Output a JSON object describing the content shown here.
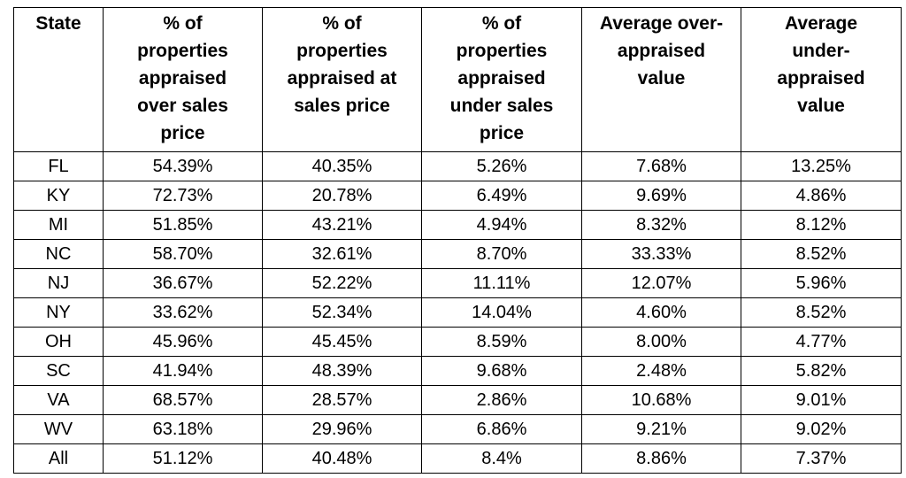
{
  "table": {
    "header": [
      "State",
      "% of properties appraised over sales price",
      "% of properties appraised at sales price",
      "% of properties appraised under sales price",
      "Average over-appraised value",
      "Average under-appraised value"
    ],
    "rows": [
      [
        "FL",
        "54.39%",
        "40.35%",
        "5.26%",
        "7.68%",
        "13.25%"
      ],
      [
        "KY",
        "72.73%",
        "20.78%",
        "6.49%",
        "9.69%",
        "4.86%"
      ],
      [
        "MI",
        "51.85%",
        "43.21%",
        "4.94%",
        "8.32%",
        "8.12%"
      ],
      [
        "NC",
        "58.70%",
        "32.61%",
        "8.70%",
        "33.33%",
        "8.52%"
      ],
      [
        "NJ",
        "36.67%",
        "52.22%",
        "11.11%",
        "12.07%",
        "5.96%"
      ],
      [
        "NY",
        "33.62%",
        "52.34%",
        "14.04%",
        "4.60%",
        "8.52%"
      ],
      [
        "OH",
        "45.96%",
        "45.45%",
        "8.59%",
        "8.00%",
        "4.77%"
      ],
      [
        "SC",
        "41.94%",
        "48.39%",
        "9.68%",
        "2.48%",
        "5.82%"
      ],
      [
        "VA",
        "68.57%",
        "28.57%",
        "2.86%",
        "10.68%",
        "9.01%"
      ],
      [
        "WV",
        "63.18%",
        "29.96%",
        "6.86%",
        "9.21%",
        "9.02%"
      ],
      [
        "All",
        "51.12%",
        "40.48%",
        "8.4%",
        "8.86%",
        "7.37%"
      ]
    ]
  }
}
